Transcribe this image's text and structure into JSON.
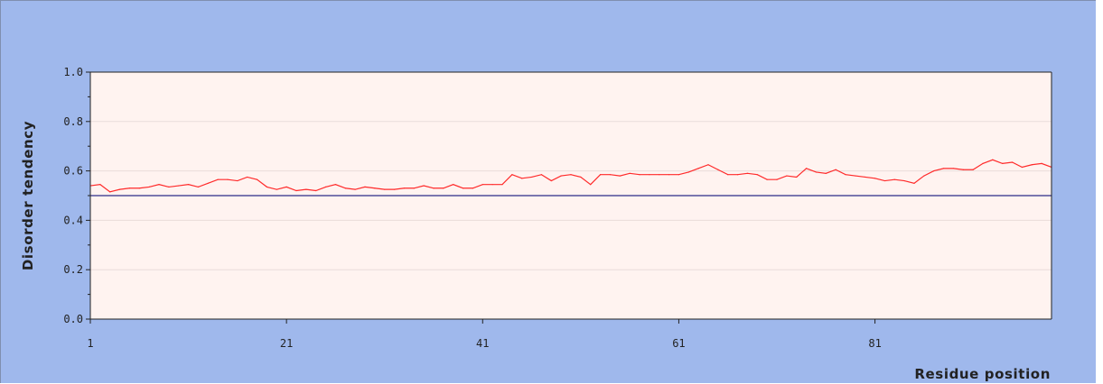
{
  "colors": {
    "panel_background": "#9fb8ec",
    "plot_background": "#fff3f0",
    "grid": "#e9dcda",
    "series_line": "#ff2a2a",
    "threshold_line": "#2b2b88",
    "axis": "#222222"
  },
  "chart_data": {
    "type": "line",
    "xlabel": "Residue position",
    "ylabel": "Disorder tendency",
    "xlim": [
      1,
      99
    ],
    "ylim": [
      0.0,
      1.0
    ],
    "x_ticks": [
      1,
      21,
      41,
      61,
      81
    ],
    "x_tick_labels": [
      "1",
      "21",
      "41",
      "61",
      "81"
    ],
    "y_ticks": [
      0.0,
      0.2,
      0.4,
      0.6,
      0.8,
      1.0
    ],
    "y_tick_labels": [
      "0.0",
      "0.2",
      "0.4",
      "0.6",
      "0.8",
      "1.0"
    ],
    "y_minor_ticks": [
      0.1,
      0.3,
      0.5,
      0.7,
      0.9
    ],
    "grid": true,
    "threshold": 0.5,
    "series": [
      {
        "color": "#ff2a2a",
        "x": [
          1,
          2,
          3,
          4,
          5,
          6,
          7,
          8,
          9,
          10,
          11,
          12,
          13,
          14,
          15,
          16,
          17,
          18,
          19,
          20,
          21,
          22,
          23,
          24,
          25,
          26,
          27,
          28,
          29,
          30,
          31,
          32,
          33,
          34,
          35,
          36,
          37,
          38,
          39,
          40,
          41,
          42,
          43,
          44,
          45,
          46,
          47,
          48,
          49,
          50,
          51,
          52,
          53,
          54,
          55,
          56,
          57,
          58,
          59,
          60,
          61,
          62,
          63,
          64,
          65,
          66,
          67,
          68,
          69,
          70,
          71,
          72,
          73,
          74,
          75,
          76,
          77,
          78,
          79,
          80,
          81,
          82,
          83,
          84,
          85,
          86,
          87,
          88,
          89,
          90,
          91,
          92,
          93,
          94,
          95,
          96,
          97,
          98,
          99
        ],
        "values": [
          0.54,
          0.545,
          0.515,
          0.525,
          0.53,
          0.53,
          0.535,
          0.545,
          0.535,
          0.54,
          0.545,
          0.535,
          0.55,
          0.565,
          0.565,
          0.56,
          0.575,
          0.565,
          0.535,
          0.525,
          0.535,
          0.52,
          0.525,
          0.52,
          0.535,
          0.545,
          0.53,
          0.525,
          0.535,
          0.53,
          0.525,
          0.525,
          0.53,
          0.53,
          0.54,
          0.53,
          0.53,
          0.545,
          0.53,
          0.53,
          0.545,
          0.545,
          0.545,
          0.585,
          0.57,
          0.575,
          0.585,
          0.56,
          0.58,
          0.585,
          0.575,
          0.545,
          0.585,
          0.585,
          0.58,
          0.59,
          0.585,
          0.585,
          0.585,
          0.585,
          0.585,
          0.595,
          0.61,
          0.625,
          0.605,
          0.585,
          0.585,
          0.59,
          0.585,
          0.565,
          0.565,
          0.58,
          0.575,
          0.61,
          0.595,
          0.59,
          0.605,
          0.585,
          0.58,
          0.575,
          0.57,
          0.56,
          0.565,
          0.56,
          0.55,
          0.58,
          0.6,
          0.61,
          0.61,
          0.605,
          0.605,
          0.63,
          0.645,
          0.63,
          0.635,
          0.615,
          0.625,
          0.63,
          0.615
        ]
      }
    ]
  }
}
